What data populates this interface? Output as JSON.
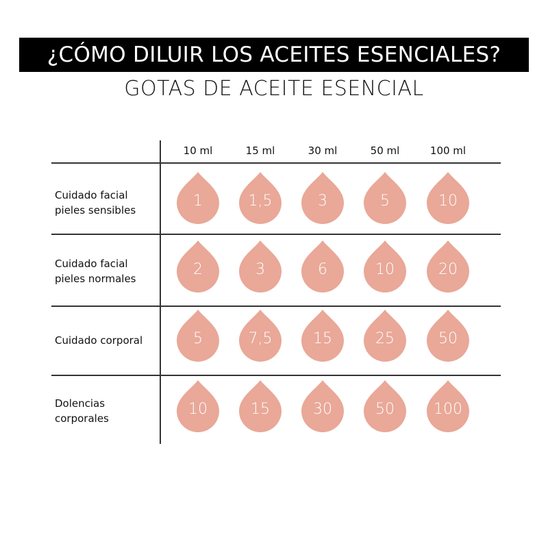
{
  "title": "¿CÓMO DILUIR LOS ACEITES ESENCIALES?",
  "subtitle": "GOTAS DE ACEITE ESENCIAL",
  "drop_color": "#e9a898",
  "columns": [
    "10 ml",
    "15 ml",
    "30 ml",
    "50 ml",
    "100 ml"
  ],
  "rows": [
    {
      "label": [
        "Cuidado facial",
        "pieles sensibles"
      ],
      "values": [
        "1",
        "1,5",
        "3",
        "5",
        "10"
      ]
    },
    {
      "label": [
        "Cuidado facial",
        "pieles normales"
      ],
      "values": [
        "2",
        "3",
        "6",
        "10",
        "20"
      ]
    },
    {
      "label": [
        "Cuidado corporal"
      ],
      "values": [
        "5",
        "7,5",
        "15",
        "25",
        "50"
      ]
    },
    {
      "label": [
        "Dolencias",
        "corporales"
      ],
      "values": [
        "10",
        "15",
        "30",
        "50",
        "100"
      ]
    }
  ]
}
